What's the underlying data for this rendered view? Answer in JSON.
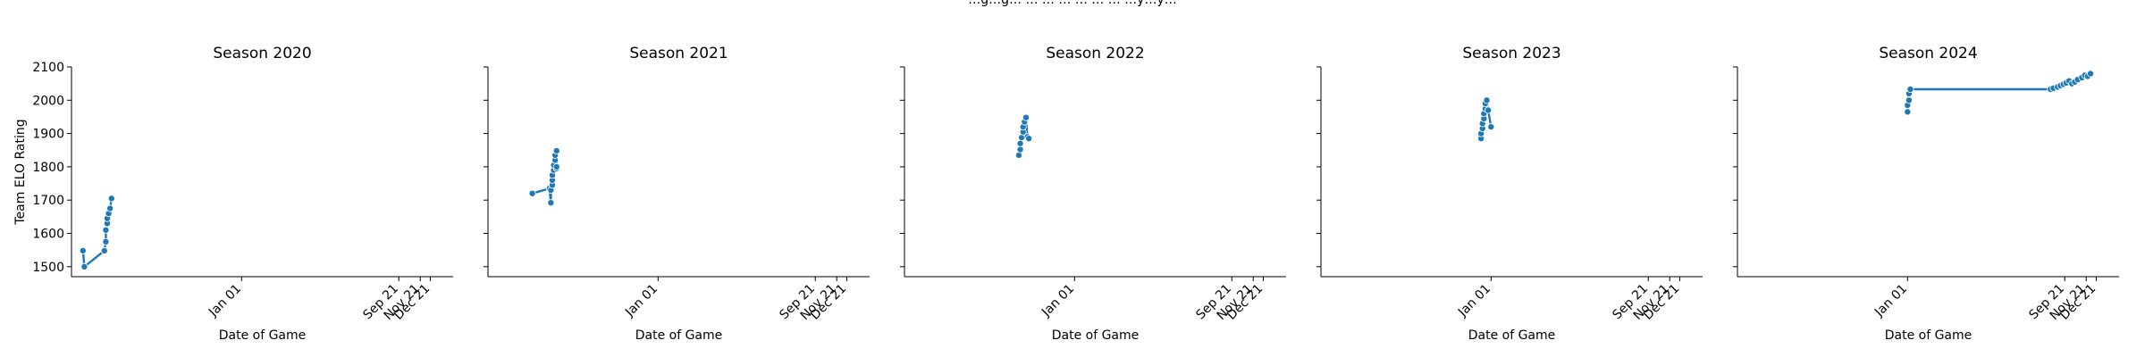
{
  "figure": {
    "suptitle": "…g…g… … … … … … … …y…y…",
    "accent_color": "#1f77b4"
  },
  "chart_data": [
    {
      "type": "line",
      "title": "Season 2020",
      "xlabel": "Date of Game",
      "ylabel": "Team ELO Rating",
      "ylim": [
        1470,
        2100
      ],
      "yticks": [
        1500,
        1600,
        1700,
        1800,
        1900,
        2000,
        2100
      ],
      "xlim": [
        "2020-09-04",
        "2021-05-29"
      ],
      "xticks": [
        {
          "label": "Jan 01",
          "date": "2021-01-01"
        },
        {
          "label": "Sep 21",
          "date": "2021-04-21"
        },
        {
          "label": "Nov 21",
          "date": "2021-05-06"
        },
        {
          "label": "Dec 21",
          "date": "2021-05-13"
        }
      ],
      "grid": false,
      "marker": "circle",
      "x": [
        "2020-09-12",
        "2020-09-13",
        "2020-09-27",
        "2020-09-28",
        "2020-09-28",
        "2020-09-29",
        "2020-09-29",
        "2020-09-30",
        "2020-10-01",
        "2020-10-02"
      ],
      "y": [
        1548,
        1500,
        1548,
        1575,
        1610,
        1630,
        1645,
        1660,
        1675,
        1705
      ]
    },
    {
      "type": "line",
      "title": "Season 2021",
      "xlabel": "Date of Game",
      "ylabel": "",
      "ylim": [
        1470,
        2100
      ],
      "xlim": [
        "2020-09-04",
        "2021-05-29"
      ],
      "xticks": [
        {
          "label": "Jan 01",
          "date": "2021-01-01"
        },
        {
          "label": "Sep 21",
          "date": "2021-04-21"
        },
        {
          "label": "Nov 21",
          "date": "2021-05-06"
        },
        {
          "label": "Dec 21",
          "date": "2021-05-13"
        }
      ],
      "grid": false,
      "marker": "circle",
      "x": [
        "2020-10-05",
        "2020-10-17",
        "2020-10-18",
        "2020-10-18",
        "2020-10-19",
        "2020-10-19",
        "2020-10-19",
        "2020-10-20",
        "2020-10-20",
        "2020-10-21",
        "2020-10-21",
        "2020-10-22",
        "2020-10-22",
        "2020-10-22"
      ],
      "y": [
        1720,
        1735,
        1692,
        1730,
        1745,
        1760,
        1775,
        1790,
        1805,
        1820,
        1835,
        1848,
        1795,
        1800
      ]
    },
    {
      "type": "line",
      "title": "Season 2022",
      "xlabel": "Date of Game",
      "ylabel": "",
      "ylim": [
        1470,
        2100
      ],
      "xlim": [
        "2020-09-04",
        "2021-05-29"
      ],
      "xticks": [
        {
          "label": "Jan 01",
          "date": "2021-01-01"
        },
        {
          "label": "Sep 21",
          "date": "2021-04-21"
        },
        {
          "label": "Nov 21",
          "date": "2021-05-06"
        },
        {
          "label": "Dec 21",
          "date": "2021-05-13"
        }
      ],
      "grid": false,
      "marker": "circle",
      "x": [
        "2020-11-23",
        "2020-11-24",
        "2020-11-24",
        "2020-11-25",
        "2020-11-26",
        "2020-11-26",
        "2020-11-27",
        "2020-11-28",
        "2020-11-29",
        "2020-11-30"
      ],
      "y": [
        1835,
        1852,
        1870,
        1888,
        1905,
        1920,
        1935,
        1948,
        1890,
        1885
      ]
    },
    {
      "type": "line",
      "title": "Season 2023",
      "xlabel": "Date of Game",
      "ylabel": "",
      "ylim": [
        1470,
        2100
      ],
      "xlim": [
        "2020-09-04",
        "2021-05-29"
      ],
      "xticks": [
        {
          "label": "Jan 01",
          "date": "2021-01-01"
        },
        {
          "label": "Sep 21",
          "date": "2021-04-21"
        },
        {
          "label": "Nov 21",
          "date": "2021-05-06"
        },
        {
          "label": "Dec 21",
          "date": "2021-05-13"
        }
      ],
      "grid": false,
      "marker": "circle",
      "x": [
        "2020-12-25",
        "2020-12-25",
        "2020-12-26",
        "2020-12-26",
        "2020-12-27",
        "2020-12-27",
        "2020-12-28",
        "2020-12-28",
        "2020-12-29",
        "2020-12-30",
        "2021-01-01"
      ],
      "y": [
        1885,
        1900,
        1915,
        1930,
        1945,
        1960,
        1975,
        1990,
        2000,
        1970,
        1920
      ]
    },
    {
      "type": "line",
      "title": "Season 2024",
      "xlabel": "Date of Game",
      "ylabel": "",
      "ylim": [
        1470,
        2100
      ],
      "xlim": [
        "2020-09-04",
        "2021-05-29"
      ],
      "xticks": [
        {
          "label": "Jan 01",
          "date": "2021-01-01"
        },
        {
          "label": "Sep 21",
          "date": "2021-04-21"
        },
        {
          "label": "Nov 21",
          "date": "2021-05-06"
        },
        {
          "label": "Dec 21",
          "date": "2021-05-13"
        }
      ],
      "grid": false,
      "marker": "circle",
      "x": [
        "2021-01-01",
        "2021-01-01",
        "2021-01-02",
        "2021-01-02",
        "2021-01-03",
        "2021-04-11",
        "2021-04-13",
        "2021-04-16",
        "2021-04-18",
        "2021-04-20",
        "2021-04-22",
        "2021-04-24",
        "2021-04-26",
        "2021-04-28",
        "2021-04-30",
        "2021-05-03",
        "2021-05-05",
        "2021-05-07",
        "2021-05-09"
      ],
      "y": [
        1965,
        1985,
        2000,
        2020,
        2033,
        2033,
        2036,
        2040,
        2044,
        2048,
        2052,
        2058,
        2050,
        2055,
        2062,
        2068,
        2075,
        2072,
        2080
      ]
    }
  ]
}
